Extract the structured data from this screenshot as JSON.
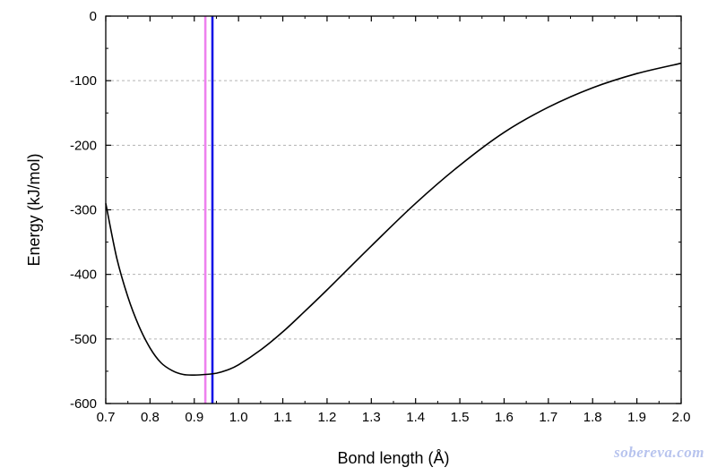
{
  "chart_data": {
    "type": "line",
    "title": "",
    "xlabel": "Bond length (Å)",
    "ylabel": "Energy (kJ/mol)",
    "xlim": [
      0.7,
      2.0
    ],
    "ylim": [
      -600,
      0
    ],
    "x_ticks": [
      "0.7",
      "0.8",
      "0.9",
      "1.0",
      "1.1",
      "1.2",
      "1.3",
      "1.4",
      "1.5",
      "1.6",
      "1.7",
      "1.8",
      "1.9",
      "2.0"
    ],
    "y_ticks": [
      "0",
      "-100",
      "-200",
      "-300",
      "-400",
      "-500",
      "-600"
    ],
    "grid": "horizontal dashed",
    "series": [
      {
        "color": "#000000",
        "x": [
          0.7,
          0.725,
          0.75,
          0.775,
          0.8,
          0.825,
          0.85,
          0.875,
          0.9,
          0.925,
          0.95,
          0.975,
          1.0,
          1.05,
          1.1,
          1.15,
          1.2,
          1.3,
          1.4,
          1.5,
          1.6,
          1.7,
          1.8,
          1.9,
          2.0
        ],
        "y": [
          -290,
          -375,
          -435,
          -480,
          -514,
          -537,
          -549,
          -555,
          -556,
          -555,
          -553,
          -548,
          -540,
          -517,
          -489,
          -457,
          -424,
          -356,
          -290,
          -231,
          -180,
          -141,
          -111,
          -89,
          -73
        ]
      }
    ],
    "reference_lines": [
      {
        "x": 0.925,
        "color": "#ee82ee"
      },
      {
        "x": 0.941,
        "color": "#1515e6"
      }
    ]
  },
  "watermark": "sobereva.com"
}
